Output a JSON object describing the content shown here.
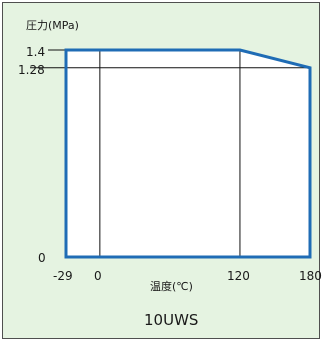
{
  "chart_data": {
    "type": "area",
    "ylabel": "圧力(MPa)",
    "xlabel": "温度(℃)",
    "caption": "10UWS",
    "x_tick_labels": [
      "-29",
      "0",
      "120",
      "180"
    ],
    "y_tick_labels": [
      "1.4",
      "1.28",
      "0"
    ],
    "xlim": [
      -29,
      180
    ],
    "ylim": [
      0,
      1.4
    ],
    "series": [
      {
        "points": [
          {
            "x": -29,
            "y": 0
          },
          {
            "x": -29,
            "y": 1.4
          },
          {
            "x": 120,
            "y": 1.4
          },
          {
            "x": 180,
            "y": 1.28
          },
          {
            "x": 180,
            "y": 0
          }
        ]
      }
    ],
    "reference_lines": {
      "x": [
        0,
        120
      ],
      "y": [
        1.28
      ]
    },
    "grid": false,
    "colors": {
      "outline": "#1f6cb5",
      "fill": "#ffffff",
      "reference": "#111111",
      "panel_background": "#e5f3e1"
    }
  }
}
